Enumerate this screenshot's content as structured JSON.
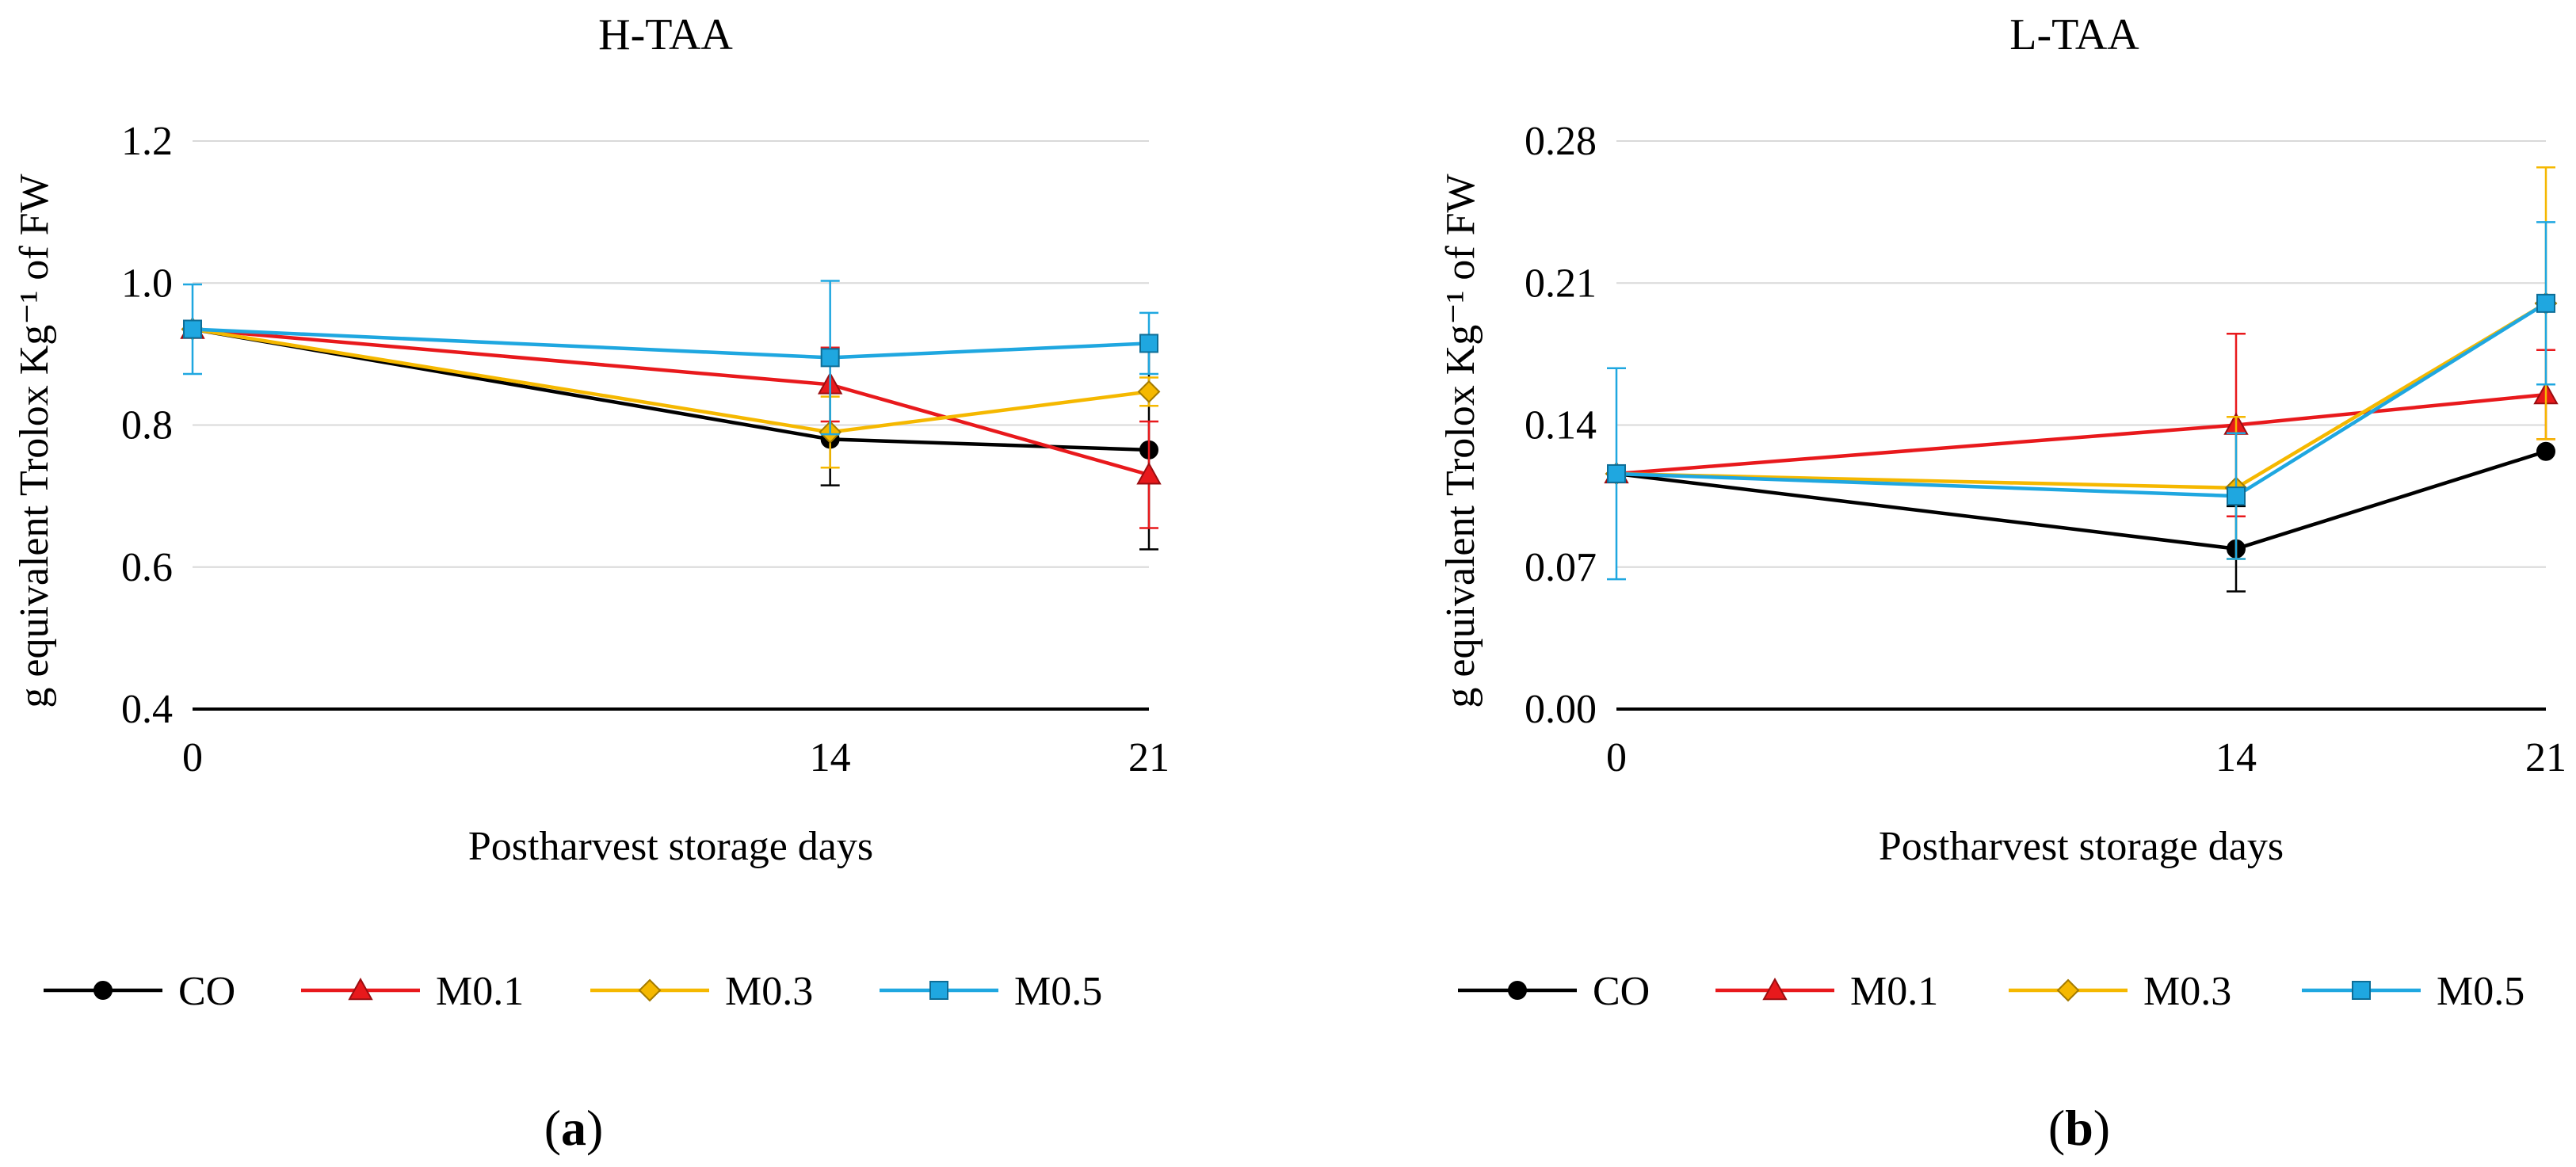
{
  "chart_data": [
    {
      "type": "line",
      "panel_label": "a",
      "title": "H-TAA",
      "xlabel": "Postharvest storage days",
      "ylabel": "g equivalent Trolox Kg⁻¹ of FW",
      "x": [
        0,
        14,
        21
      ],
      "x_tick_labels": [
        "0",
        "14",
        "21"
      ],
      "ylim": [
        0.4,
        1.2
      ],
      "y_ticks": [
        0.4,
        0.6,
        0.8,
        1.0,
        1.2
      ],
      "y_tick_labels": [
        "0.4",
        "0.6",
        "0.8",
        "1.0",
        "1.2"
      ],
      "grid": "horizontal",
      "legend_position": "bottom",
      "series": [
        {
          "name": "CO",
          "color": "#000000",
          "marker": "circle",
          "values": [
            0.935,
            0.78,
            0.765
          ],
          "errors": [
            0.0,
            0.065,
            0.14
          ]
        },
        {
          "name": "M0.1",
          "color": "#e8191c",
          "marker": "triangle",
          "values": [
            0.935,
            0.857,
            0.73
          ],
          "errors": [
            0.0,
            0.052,
            0.075
          ]
        },
        {
          "name": "M0.3",
          "color": "#f5b800",
          "marker": "diamond",
          "values": [
            0.935,
            0.79,
            0.847
          ],
          "errors": [
            0.0,
            0.05,
            0.02
          ]
        },
        {
          "name": "M0.5",
          "color": "#1fa7e0",
          "marker": "square",
          "values": [
            0.935,
            0.895,
            0.915
          ],
          "errors": [
            0.063,
            0.108,
            0.043
          ]
        }
      ]
    },
    {
      "type": "line",
      "panel_label": "b",
      "title": "L-TAA",
      "xlabel": "Postharvest storage days",
      "ylabel": "g equivalent Trolox Kg⁻¹ of FW",
      "x": [
        0,
        14,
        21
      ],
      "x_tick_labels": [
        "0",
        "14",
        "21"
      ],
      "ylim": [
        0.0,
        0.28
      ],
      "y_ticks": [
        0.0,
        0.07,
        0.14,
        0.21,
        0.28
      ],
      "y_tick_labels": [
        "0.00",
        "0.07",
        "0.14",
        "0.21",
        "0.28"
      ],
      "grid": "horizontal",
      "legend_position": "bottom",
      "series": [
        {
          "name": "CO",
          "color": "#000000",
          "marker": "circle",
          "values": [
            0.116,
            0.079,
            0.127
          ],
          "errors": [
            0.0,
            0.021,
            0.0
          ]
        },
        {
          "name": "M0.1",
          "color": "#e8191c",
          "marker": "triangle",
          "values": [
            0.116,
            0.14,
            0.155
          ],
          "errors": [
            0.0,
            0.045,
            0.022
          ]
        },
        {
          "name": "M0.3",
          "color": "#f5b800",
          "marker": "diamond",
          "values": [
            0.116,
            0.109,
            0.2
          ],
          "errors": [
            0.0,
            0.035,
            0.067
          ]
        },
        {
          "name": "M0.5",
          "color": "#1fa7e0",
          "marker": "square",
          "values": [
            0.116,
            0.105,
            0.2
          ],
          "errors": [
            0.052,
            0.031,
            0.04
          ]
        }
      ]
    }
  ]
}
